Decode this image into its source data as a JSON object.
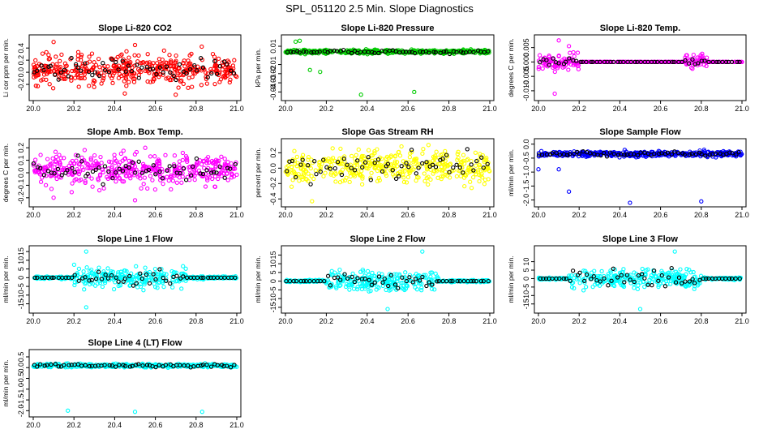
{
  "page": {
    "title": "SPL_051120  2.5 Min. Slope Diagnostics"
  },
  "colors": {
    "red": "#ff0000",
    "green": "#00cc00",
    "magenta": "#ff00ff",
    "yellow": "#ffff00",
    "blue": "#0000ff",
    "cyan": "#00ffff",
    "black": "#000000"
  },
  "chart_data": [
    {
      "type": "scatter",
      "title": "Slope Li-820 CO2",
      "ylabel": "Li cor ppm per min.",
      "color": "red",
      "xlim": [
        20.0,
        21.0
      ],
      "ylim": [
        -0.4,
        0.55
      ],
      "xticks": [
        "20.0",
        "20.2",
        "20.4",
        "20.6",
        "20.8",
        "21.0"
      ],
      "yticks": [
        "-0.2",
        "0.0",
        "0.2",
        "0.4"
      ],
      "yticks_values": [
        -0.2,
        0.0,
        0.2,
        0.4
      ],
      "pattern": "uniform",
      "center": 0.05,
      "spread": 0.3,
      "outliers": [
        [
          20.1,
          0.5
        ],
        [
          20.45,
          -0.35
        ],
        [
          20.7,
          -0.37
        ],
        [
          20.5,
          0.45
        ]
      ]
    },
    {
      "type": "scatter",
      "title": "Slope Li-820 Pressure",
      "ylabel": "kPa per min.",
      "color": "green",
      "xlim": [
        20.0,
        21.0
      ],
      "ylim": [
        -0.045,
        0.018
      ],
      "xticks": [
        "20.0",
        "20.2",
        "20.4",
        "20.6",
        "20.8",
        "21.0"
      ],
      "yticks": [
        "-0.04",
        "-0.03",
        "-0.02",
        "-0.01",
        "0.01"
      ],
      "yticks_values": [
        -0.04,
        -0.03,
        -0.02,
        -0.01,
        0.01
      ],
      "pattern": "tight",
      "center": 0.004,
      "spread": 0.006,
      "outliers": [
        [
          20.12,
          -0.016
        ],
        [
          20.17,
          -0.018
        ],
        [
          20.37,
          -0.043
        ],
        [
          20.63,
          -0.04
        ],
        [
          20.05,
          0.015
        ],
        [
          20.07,
          0.016
        ]
      ]
    },
    {
      "type": "scatter",
      "title": "Slope Li-820 Temp.",
      "ylabel": "degrees C per min.",
      "color": "magenta",
      "xlim": [
        20.0,
        21.0
      ],
      "ylim": [
        -0.012,
        0.008
      ],
      "xticks": [
        "20.0",
        "20.2",
        "20.4",
        "20.6",
        "20.8",
        "21.0"
      ],
      "yticks": [
        "-0.010",
        "-0.005",
        "0.000",
        "0.005"
      ],
      "yticks_values": [
        -0.01,
        -0.005,
        0.0,
        0.005
      ],
      "pattern": "burst",
      "center": 0.0,
      "spread": 0.005,
      "bursts": [
        [
          20.0,
          20.2
        ],
        [
          20.72,
          20.83
        ]
      ],
      "outliers": [
        [
          20.1,
          0.0075
        ],
        [
          20.08,
          -0.011
        ],
        [
          20.15,
          0.0055
        ]
      ]
    },
    {
      "type": "scatter",
      "title": "Slope Amb. Box Temp.",
      "ylabel": "degrees C per min.",
      "color": "magenta",
      "xlim": [
        20.0,
        21.0
      ],
      "ylim": [
        -0.24,
        0.24
      ],
      "xticks": [
        "20.0",
        "20.2",
        "20.4",
        "20.6",
        "20.8",
        "21.0"
      ],
      "yticks": [
        "-0.2",
        "-0.1",
        "0.0",
        "0.1",
        "0.2"
      ],
      "yticks_values": [
        -0.2,
        -0.1,
        0.0,
        0.1,
        0.2
      ],
      "pattern": "uniform",
      "center": 0.02,
      "spread": 0.14,
      "outliers": [
        [
          20.5,
          -0.22
        ],
        [
          20.55,
          0.2
        ],
        [
          20.1,
          -0.2
        ]
      ]
    },
    {
      "type": "scatter",
      "title": "Slope Gas Stream RH",
      "ylabel": "percent per min.",
      "color": "yellow",
      "xlim": [
        20.0,
        21.0
      ],
      "ylim": [
        -0.45,
        0.33
      ],
      "xticks": [
        "20.0",
        "20.2",
        "20.4",
        "20.6",
        "20.8",
        "21.0"
      ],
      "yticks": [
        "-0.4",
        "-0.2",
        "0.0",
        "0.2"
      ],
      "yticks_values": [
        -0.4,
        -0.2,
        0.0,
        0.2
      ],
      "pattern": "uniform",
      "center": 0.02,
      "spread": 0.25,
      "outliers": [
        [
          20.13,
          -0.43
        ],
        [
          20.7,
          0.3
        ]
      ]
    },
    {
      "type": "scatter",
      "title": "Slope Sample Flow",
      "ylabel": "ml/min per min.",
      "color": "blue",
      "xlim": [
        20.0,
        21.0
      ],
      "ylim": [
        -2.1,
        0.05
      ],
      "xticks": [
        "20.0",
        "20.2",
        "20.4",
        "20.6",
        "20.8",
        "21.0"
      ],
      "yticks": [
        "-2.0",
        "-1.5",
        "-1.0",
        "-0.5",
        "0.0"
      ],
      "yticks_values": [
        -2.0,
        -1.5,
        -1.0,
        -0.5,
        0.0
      ],
      "pattern": "tight",
      "center": -0.35,
      "spread": 0.3,
      "outliers": [
        [
          20.15,
          -1.7
        ],
        [
          20.45,
          -2.1
        ],
        [
          20.8,
          -2.05
        ],
        [
          20.0,
          -0.9
        ],
        [
          20.1,
          -0.9
        ]
      ]
    },
    {
      "type": "scatter",
      "title": "Slope Line 1 Flow",
      "ylabel": "ml/min per min.",
      "color": "cyan",
      "xlim": [
        20.0,
        21.0
      ],
      "ylim": [
        -18,
        16
      ],
      "xticks": [
        "20.0",
        "20.2",
        "20.4",
        "20.6",
        "20.8",
        "21.0"
      ],
      "yticks": [
        "-15",
        "-10",
        "-5",
        "0",
        "5",
        "10",
        "15"
      ],
      "yticks_values": [
        -15,
        -10,
        -5,
        0,
        5,
        10,
        15
      ],
      "pattern": "middle",
      "center": 0.0,
      "spread": 9,
      "middle": [
        20.2,
        20.75
      ],
      "outliers": [
        [
          20.26,
          15
        ],
        [
          20.26,
          -17
        ]
      ]
    },
    {
      "type": "scatter",
      "title": "Slope Line 2 Flow",
      "ylabel": "ml/min per min.",
      "color": "cyan",
      "xlim": [
        20.0,
        21.0
      ],
      "ylim": [
        -16,
        18
      ],
      "xticks": [
        "20.0",
        "20.2",
        "20.4",
        "20.6",
        "20.8",
        "21.0"
      ],
      "yticks": [
        "-15",
        "-10",
        "-5",
        "0",
        "5",
        "10",
        "15"
      ],
      "yticks_values": [
        -15,
        -10,
        -5,
        0,
        5,
        10,
        15
      ],
      "pattern": "middle",
      "center": 0.0,
      "spread": 8,
      "middle": [
        20.2,
        20.75
      ],
      "outliers": [
        [
          20.67,
          17
        ],
        [
          20.5,
          -16
        ]
      ]
    },
    {
      "type": "scatter",
      "title": "Slope Line 3 Flow",
      "ylabel": "ml/min per min.",
      "color": "cyan",
      "xlim": [
        20.0,
        21.0
      ],
      "ylim": [
        -18,
        17
      ],
      "xticks": [
        "20.0",
        "20.2",
        "20.4",
        "20.6",
        "20.8",
        "21.0"
      ],
      "yticks": [
        "-15",
        "-10",
        "-5",
        "0",
        "5",
        "10"
      ],
      "yticks_values": [
        -15,
        -10,
        -5,
        0,
        5,
        10
      ],
      "pattern": "middle",
      "center": 0.0,
      "spread": 8,
      "middle": [
        20.15,
        20.8
      ],
      "outliers": [
        [
          20.67,
          16
        ],
        [
          20.5,
          -18
        ]
      ]
    },
    {
      "type": "scatter",
      "title": "Slope Line 4 (LT) Flow",
      "ylabel": "ml/min per min.",
      "color": "cyan",
      "xlim": [
        20.0,
        21.0
      ],
      "ylim": [
        -2.1,
        0.65
      ],
      "xticks": [
        "20.0",
        "20.2",
        "20.4",
        "20.6",
        "20.8",
        "21.0"
      ],
      "yticks": [
        "-2.0",
        "-1.5",
        "-1.0",
        "-0.5",
        "0.0",
        "0.5"
      ],
      "yticks_values": [
        -2.0,
        -1.5,
        -1.0,
        -0.5,
        0.0,
        0.5
      ],
      "pattern": "tight",
      "center": 0.1,
      "spread": 0.25,
      "outliers": [
        [
          20.17,
          -2.0
        ],
        [
          20.5,
          -2.05
        ],
        [
          20.83,
          -2.05
        ]
      ]
    }
  ]
}
